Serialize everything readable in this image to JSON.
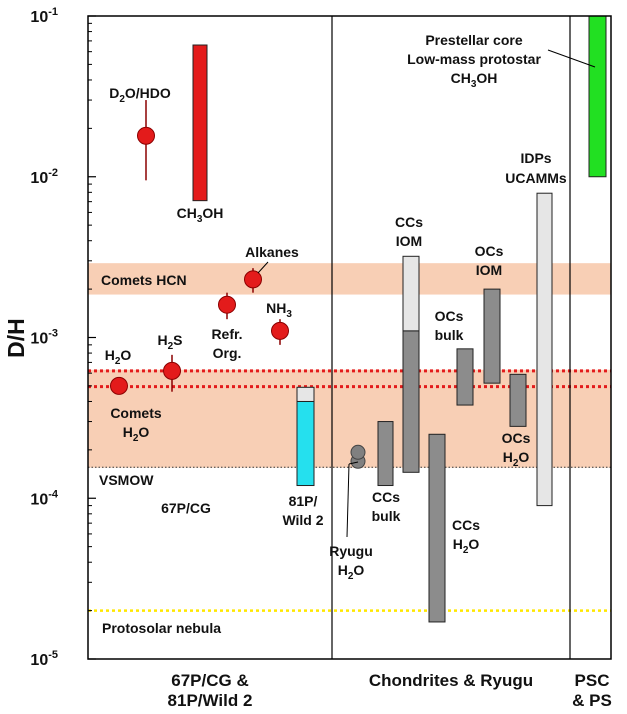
{
  "chart_data": {
    "type": "range-bar",
    "ylabel": "D/H",
    "yscale": "log",
    "ylim": [
      1e-05,
      0.1
    ],
    "y_ticks": [
      {
        "value": 1e-05,
        "label": "10",
        "exp": "-5"
      },
      {
        "value": 0.0001,
        "label": "10",
        "exp": "-4"
      },
      {
        "value": 0.001,
        "label": "10",
        "exp": "-3"
      },
      {
        "value": 0.01,
        "label": "10",
        "exp": "-2"
      },
      {
        "value": 0.1,
        "label": "10",
        "exp": "-1"
      }
    ],
    "panels": [
      {
        "label": "67P/CG &\n81P/Wild 2"
      },
      {
        "label": "Chondrites & Ryugu"
      },
      {
        "label": "PSC\n& PS"
      }
    ],
    "bands": [
      {
        "name": "Comets HCN",
        "low": 0.00185,
        "high": 0.0029,
        "color": "#f8cfb5"
      },
      {
        "name": "Comets H2O",
        "low": 0.000155,
        "high": 0.00063,
        "color": "#f8cfb5"
      }
    ],
    "reference_lines": [
      {
        "name": "VSMOW",
        "value": 0.000156,
        "color": "#333333",
        "style": "dotted"
      },
      {
        "name": "Protosolar nebula",
        "value": 2e-05,
        "color": "#ffe800",
        "style": "dotted"
      },
      {
        "name": "67P/CG H2O (upper)",
        "value": 0.00062,
        "color": "#e31b1b",
        "style": "dotted"
      },
      {
        "name": "67P/CG H2O (lower)",
        "value": 0.000495,
        "color": "#e31b1b",
        "style": "dotted"
      }
    ],
    "points": [
      {
        "label": "D2O/HDO",
        "value": 0.018,
        "err_low": 0.0095,
        "err_high": 0.03
      },
      {
        "label": "Alkanes",
        "value": 0.0023,
        "err_low": 0.0019,
        "err_high": 0.0027
      },
      {
        "label": "Refr. Org.",
        "value": 0.0016,
        "err_low": 0.0013,
        "err_high": 0.0019
      },
      {
        "label": "NH3",
        "value": 0.0011,
        "err_low": 0.0009,
        "err_high": 0.0013
      },
      {
        "label": "H2S",
        "value": 0.00062,
        "err_low": 0.00046,
        "err_high": 0.00078
      },
      {
        "label": "H2O",
        "value": 0.0005,
        "err_low": 0.00046,
        "err_high": 0.00054
      },
      {
        "label": "Ryugu H2O",
        "value": 0.000185,
        "err_low": 0.000175,
        "err_high": 0.000195,
        "color": "#808080"
      }
    ],
    "ranges": [
      {
        "label": "CH3OH",
        "low": 0.0071,
        "high": 0.066,
        "color": "#e31b1b"
      },
      {
        "label": "81P/Wild 2",
        "low": 0.00012,
        "high": 0.0004,
        "color": "#25e0ee"
      },
      {
        "label": "81P/Wild 2 (upper)",
        "low": 0.0004,
        "high": 0.00049,
        "color": "#e6e6e6"
      },
      {
        "label": "CCs bulk",
        "low": 0.00012,
        "high": 0.0003,
        "color": "#8c8c8c"
      },
      {
        "label": "CCs IOM (lower)",
        "low": 0.000145,
        "high": 0.0011,
        "color": "#8c8c8c"
      },
      {
        "label": "CCs IOM (upper)",
        "low": 0.0011,
        "high": 0.0032,
        "color": "#e6e6e6"
      },
      {
        "label": "CCs H2O",
        "low": 1.7e-05,
        "high": 0.00025,
        "color": "#8c8c8c"
      },
      {
        "label": "OCs bulk",
        "low": 0.00038,
        "high": 0.00085,
        "color": "#8c8c8c"
      },
      {
        "label": "OCs IOM",
        "low": 0.00052,
        "high": 0.002,
        "color": "#8c8c8c"
      },
      {
        "label": "OCs H2O",
        "low": 0.00028,
        "high": 0.00059,
        "color": "#8c8c8c"
      },
      {
        "label": "IDPs UCAMMs",
        "low": 9e-05,
        "high": 0.0079,
        "color": "#e6e6e6"
      },
      {
        "label": "Prestellar core",
        "low": 0.01,
        "high": 0.1,
        "color": "#22e022"
      }
    ],
    "labels": {
      "ch3oh_top_a": "Prestellar core",
      "ch3oh_top_b": "Low-mass protostar",
      "ch3oh_top_c": "CH",
      "ch3oh_top_c_sub": "3",
      "ch3oh_top_c_end": "OH",
      "idps_a": "IDPs",
      "idps_b": "UCAMMs",
      "d2o_a": "D",
      "d2o_sub": "2",
      "d2o_b": "O/HDO",
      "ch3oh_a": "CH",
      "ch3oh_sub": "3",
      "ch3oh_b": "OH",
      "ccs_iom_a": "CCs",
      "ccs_iom_b": "IOM",
      "ocs_iom_a": "OCs",
      "ocs_iom_b": "IOM",
      "alkanes": "Alkanes",
      "comets_hcn": "Comets HCN",
      "refr_a": "Refr.",
      "refr_b": "Org.",
      "nh3_a": "NH",
      "nh3_sub": "3",
      "ocs_bulk_a": "OCs",
      "ocs_bulk_b": "bulk",
      "h2s_a": "H",
      "h2s_sub": "2",
      "h2s_b": "S",
      "h2o_a": "H",
      "h2o_sub": "2",
      "h2o_b": "O",
      "comets_a": "Comets",
      "comets_b": "H",
      "comets_sub": "2",
      "comets_c": "O",
      "ocs_h2o_a": "OCs",
      "ocs_h2o_b": "H",
      "ocs_h2o_sub": "2",
      "ocs_h2o_c": "O",
      "vsmow": "VSMOW",
      "p67": "67P/CG",
      "wild_a": "81P/",
      "wild_b": "Wild 2",
      "ccs_bulk_a": "CCs",
      "ccs_bulk_b": "bulk",
      "ccs_h2o_a": "CCs",
      "ccs_h2o_b": "H",
      "ccs_h2o_sub": "2",
      "ccs_h2o_c": "O",
      "ryugu_a": "Ryugu",
      "ryugu_b": "H",
      "ryugu_sub": "2",
      "ryugu_c": "O",
      "protosolar": "Protosolar nebula"
    },
    "colors": {
      "point": "#e31b1b",
      "point_stroke": "#8b0000",
      "p67_label": "#e31b1b",
      "bar_stroke": "#222222"
    }
  }
}
